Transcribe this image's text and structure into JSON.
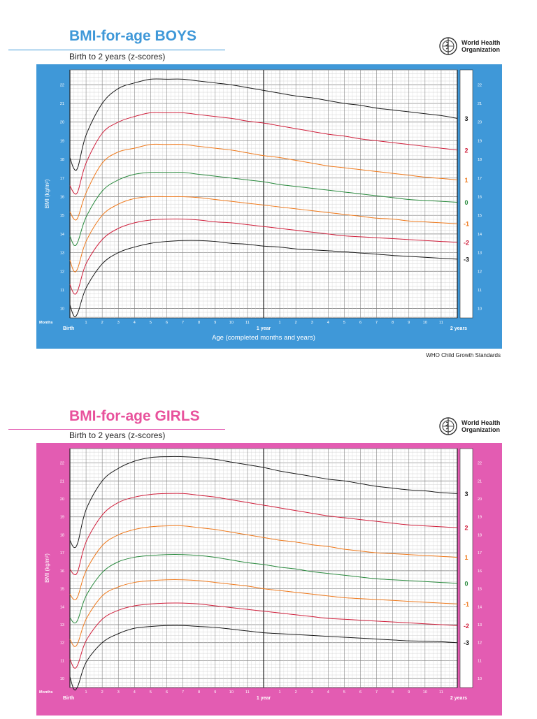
{
  "boys": {
    "title": "BMI-for-age BOYS",
    "subtitle": "Birth to 2 years (z-scores)",
    "accent": "#e8529c",
    "band_color": "#3f98d8",
    "rule_color": "#3f98d8",
    "organization": [
      "World Health",
      "Organization"
    ],
    "footer": "WHO Child Growth Standards",
    "months_label": "Months",
    "birth_label": "Birth",
    "year1_label": "1 year",
    "year2_label": "2 years",
    "xlabel": "Age (completed months and years)",
    "ylabel": "BMI (kg/m²)"
  },
  "girls": {
    "title": "BMI-for-age GIRLS",
    "subtitle": "Birth to 2 years (z-scores)",
    "accent": "#e8529c",
    "band_color": "#e35cb2",
    "rule_color": "#e35cb2",
    "organization": [
      "World Health",
      "Organization"
    ],
    "months_label": "Months",
    "birth_label": "Birth",
    "year1_label": "1 year",
    "year2_label": "2 years",
    "ylabel": "BMI (kg/m²)"
  },
  "chart_data": [
    {
      "type": "line",
      "title": "BMI-for-age BOYS",
      "subtitle": "Birth to 2 years (z-scores)",
      "xlabel": "Age (completed months and years)",
      "ylabel": "BMI (kg/m²)",
      "x_unit": "months",
      "xlim": [
        0,
        24
      ],
      "ylim": [
        9.5,
        22.8
      ],
      "y_ticks": [
        10,
        11,
        12,
        13,
        14,
        15,
        16,
        17,
        18,
        19,
        20,
        21,
        22
      ],
      "x_tick_labels": [
        "1",
        "2",
        "3",
        "4",
        "5",
        "6",
        "7",
        "8",
        "9",
        "10",
        "11",
        "1 year",
        "1",
        "2",
        "3",
        "4",
        "5",
        "6",
        "7",
        "8",
        "9",
        "10",
        "11",
        "2 years"
      ],
      "grid": true,
      "x": [
        0,
        0.25,
        0.5,
        1,
        2,
        3,
        4,
        5,
        6,
        7,
        8,
        9,
        10,
        11,
        12,
        13,
        14,
        15,
        16,
        17,
        18,
        19,
        20,
        21,
        22,
        23,
        24
      ],
      "series": [
        {
          "name": "3",
          "color": "#1a1a1a",
          "values": [
            18.1,
            17.5,
            17.6,
            19.3,
            21.0,
            21.8,
            22.1,
            22.3,
            22.3,
            22.3,
            22.2,
            22.1,
            22.0,
            21.85,
            21.7,
            21.55,
            21.4,
            21.3,
            21.15,
            21.0,
            20.9,
            20.75,
            20.65,
            20.55,
            20.45,
            20.35,
            20.2
          ]
        },
        {
          "name": "2",
          "color": "#d0203c",
          "values": [
            16.6,
            16.2,
            16.3,
            17.8,
            19.4,
            20.0,
            20.3,
            20.5,
            20.5,
            20.5,
            20.4,
            20.3,
            20.2,
            20.05,
            19.95,
            19.8,
            19.65,
            19.5,
            19.35,
            19.25,
            19.1,
            19.0,
            18.9,
            18.8,
            18.7,
            18.6,
            18.5
          ]
        },
        {
          "name": "1",
          "color": "#ef7a1d",
          "values": [
            15.2,
            14.8,
            14.9,
            16.2,
            17.8,
            18.4,
            18.6,
            18.8,
            18.8,
            18.8,
            18.7,
            18.6,
            18.5,
            18.35,
            18.2,
            18.1,
            17.95,
            17.8,
            17.65,
            17.55,
            17.45,
            17.35,
            17.25,
            17.15,
            17.05,
            16.98,
            16.9
          ]
        },
        {
          "name": "0",
          "color": "#2a8a3e",
          "values": [
            13.9,
            13.4,
            13.6,
            14.9,
            16.3,
            16.9,
            17.2,
            17.3,
            17.3,
            17.3,
            17.2,
            17.1,
            17.0,
            16.9,
            16.8,
            16.65,
            16.55,
            16.45,
            16.35,
            16.25,
            16.15,
            16.05,
            15.95,
            15.85,
            15.8,
            15.75,
            15.7
          ]
        },
        {
          "name": "-1",
          "color": "#ef7a1d",
          "values": [
            12.6,
            12.0,
            12.2,
            13.6,
            15.0,
            15.6,
            15.9,
            16.0,
            16.0,
            16.0,
            15.95,
            15.85,
            15.75,
            15.65,
            15.55,
            15.45,
            15.35,
            15.25,
            15.15,
            15.05,
            14.95,
            14.85,
            14.8,
            14.7,
            14.65,
            14.6,
            14.55
          ]
        },
        {
          "name": "-2",
          "color": "#d0203c",
          "values": [
            11.3,
            10.8,
            11.0,
            12.4,
            13.7,
            14.3,
            14.6,
            14.75,
            14.8,
            14.8,
            14.75,
            14.65,
            14.6,
            14.5,
            14.4,
            14.3,
            14.2,
            14.1,
            14.0,
            13.9,
            13.85,
            13.8,
            13.75,
            13.7,
            13.65,
            13.6,
            13.55
          ]
        },
        {
          "name": "-3",
          "color": "#1a1a1a",
          "values": [
            10.2,
            9.6,
            9.8,
            11.1,
            12.4,
            13.0,
            13.3,
            13.5,
            13.6,
            13.65,
            13.65,
            13.6,
            13.5,
            13.45,
            13.35,
            13.3,
            13.2,
            13.15,
            13.1,
            13.05,
            12.98,
            12.92,
            12.85,
            12.8,
            12.75,
            12.7,
            12.65
          ]
        }
      ]
    },
    {
      "type": "line",
      "title": "BMI-for-age GIRLS",
      "subtitle": "Birth to 2 years (z-scores)",
      "ylabel": "BMI (kg/m²)",
      "x_unit": "months",
      "xlim": [
        0,
        24
      ],
      "ylim": [
        9.5,
        22.8
      ],
      "y_ticks": [
        10,
        11,
        12,
        13,
        14,
        15,
        16,
        17,
        18,
        19,
        20,
        21,
        22
      ],
      "x_tick_labels": [
        "1",
        "2",
        "3",
        "4",
        "5",
        "6",
        "7",
        "8",
        "9",
        "10",
        "11",
        "1 year",
        "1",
        "2",
        "3",
        "4",
        "5",
        "6",
        "7",
        "8",
        "9",
        "10",
        "11",
        "2 years"
      ],
      "grid": true,
      "x": [
        0,
        0.25,
        0.5,
        1,
        2,
        3,
        4,
        5,
        6,
        7,
        8,
        9,
        10,
        11,
        12,
        13,
        14,
        15,
        16,
        17,
        18,
        19,
        20,
        21,
        22,
        23,
        24
      ],
      "series": [
        {
          "name": "3",
          "color": "#1a1a1a",
          "values": [
            17.7,
            17.3,
            17.6,
            19.4,
            21.0,
            21.7,
            22.1,
            22.3,
            22.35,
            22.35,
            22.3,
            22.2,
            22.05,
            21.9,
            21.75,
            21.55,
            21.4,
            21.25,
            21.1,
            21.0,
            20.85,
            20.7,
            20.6,
            20.5,
            20.45,
            20.35,
            20.3
          ]
        },
        {
          "name": "2",
          "color": "#d0203c",
          "values": [
            16.1,
            15.8,
            16.0,
            17.6,
            19.1,
            19.8,
            20.1,
            20.25,
            20.3,
            20.3,
            20.2,
            20.1,
            19.95,
            19.8,
            19.65,
            19.5,
            19.35,
            19.2,
            19.05,
            18.95,
            18.85,
            18.75,
            18.65,
            18.55,
            18.5,
            18.45,
            18.4
          ]
        },
        {
          "name": "1",
          "color": "#ef7a1d",
          "values": [
            14.7,
            14.4,
            14.6,
            16.0,
            17.4,
            18.0,
            18.3,
            18.45,
            18.5,
            18.5,
            18.4,
            18.3,
            18.15,
            18.0,
            17.85,
            17.7,
            17.6,
            17.45,
            17.35,
            17.2,
            17.1,
            17.0,
            16.95,
            16.9,
            16.85,
            16.8,
            16.75
          ]
        },
        {
          "name": "0",
          "color": "#2a8a3e",
          "values": [
            13.4,
            13.1,
            13.3,
            14.6,
            15.9,
            16.5,
            16.75,
            16.85,
            16.9,
            16.9,
            16.85,
            16.75,
            16.6,
            16.45,
            16.35,
            16.2,
            16.1,
            15.95,
            15.85,
            15.75,
            15.65,
            15.55,
            15.5,
            15.45,
            15.4,
            15.35,
            15.3
          ]
        },
        {
          "name": "-1",
          "color": "#ef7a1d",
          "values": [
            12.2,
            11.8,
            12.0,
            13.3,
            14.6,
            15.1,
            15.35,
            15.45,
            15.5,
            15.5,
            15.45,
            15.35,
            15.25,
            15.15,
            15.0,
            14.9,
            14.8,
            14.7,
            14.6,
            14.5,
            14.45,
            14.4,
            14.35,
            14.3,
            14.25,
            14.2,
            14.15
          ]
        },
        {
          "name": "-2",
          "color": "#d0203c",
          "values": [
            11.1,
            10.6,
            10.8,
            12.1,
            13.3,
            13.8,
            14.05,
            14.15,
            14.2,
            14.2,
            14.15,
            14.05,
            13.95,
            13.85,
            13.75,
            13.65,
            13.55,
            13.45,
            13.35,
            13.3,
            13.25,
            13.2,
            13.15,
            13.1,
            13.05,
            13.0,
            12.95
          ]
        },
        {
          "name": "-3",
          "color": "#1a1a1a",
          "values": [
            10.1,
            9.4,
            9.6,
            10.9,
            12.0,
            12.5,
            12.8,
            12.9,
            12.95,
            12.95,
            12.9,
            12.85,
            12.75,
            12.65,
            12.55,
            12.5,
            12.45,
            12.4,
            12.35,
            12.3,
            12.25,
            12.2,
            12.15,
            12.1,
            12.08,
            12.05,
            12.0
          ]
        }
      ]
    }
  ]
}
